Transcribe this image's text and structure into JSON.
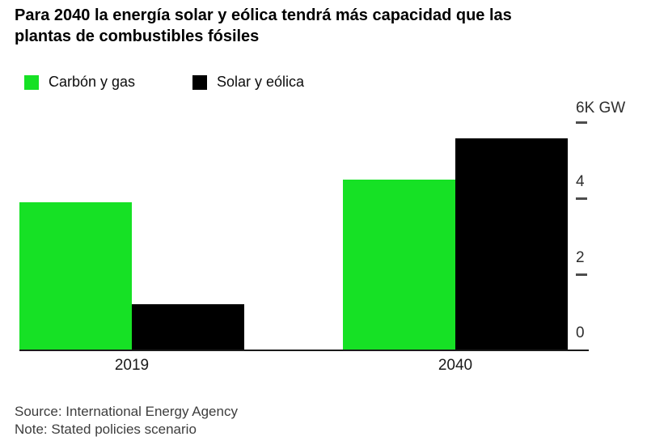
{
  "title": {
    "line1": "Para 2040 la energía solar y eólica tendrá más capacidad que las",
    "line2": "plantas de combustibles fósiles"
  },
  "legend": {
    "items": [
      {
        "label": "Carbón y gas",
        "color": "#16E125"
      },
      {
        "label": "Solar y eólica",
        "color": "#000000"
      }
    ]
  },
  "chart_data": {
    "type": "bar",
    "title": "Para 2040 la energía solar y eólica tendrá más capacidad que las plantas de combustibles fósiles",
    "categories": [
      "2019",
      "2040"
    ],
    "series": [
      {
        "name": "Carbón y gas",
        "color": "#16E125",
        "values": [
          3.9,
          4.5
        ]
      },
      {
        "name": "Solar y eólica",
        "color": "#000000",
        "values": [
          1.2,
          5.6
        ]
      }
    ],
    "unit": "K GW",
    "xlabel": "",
    "ylabel": "",
    "ylim": [
      0,
      6
    ],
    "yticks": [
      0,
      2,
      4,
      6
    ],
    "ytick_labels": [
      "0",
      "2",
      "4",
      "6K GW"
    ],
    "legend_position": "top-left",
    "grid": false
  },
  "axis": {
    "y_labels": [
      "6K GW",
      "4",
      "2",
      "0"
    ],
    "x_labels": [
      "2019",
      "2040"
    ]
  },
  "source": {
    "line1": "Source: International Energy Agency",
    "line2": "Note: Stated policies scenario"
  }
}
